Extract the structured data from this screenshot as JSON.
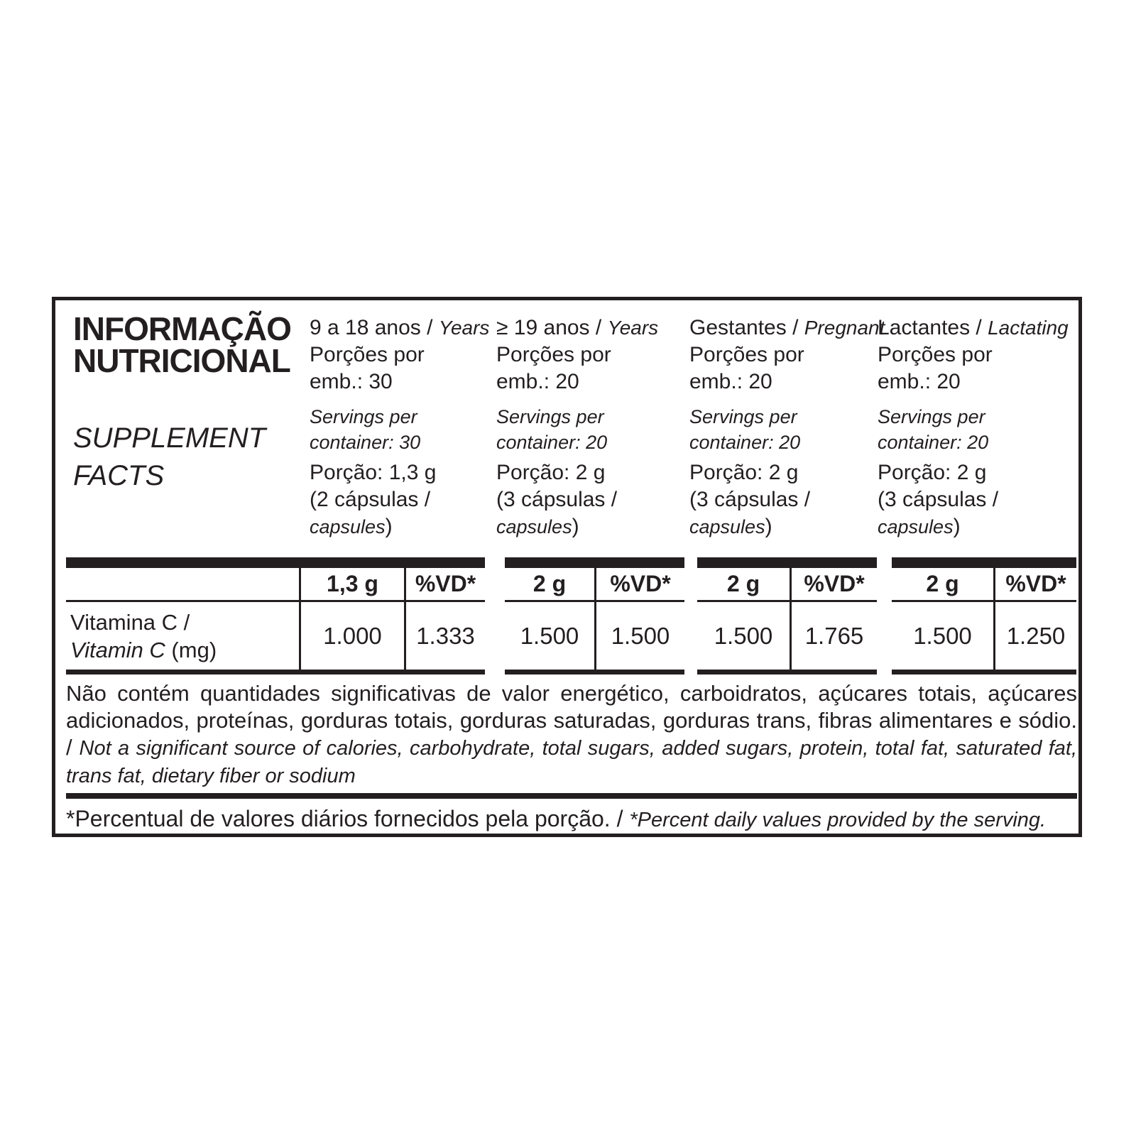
{
  "label": {
    "colors": {
      "ink": "#231f20",
      "background": "#ffffff"
    },
    "title_pt": "INFORMAÇÃO\nNUTRICIONAL",
    "title_en": "SUPPLEMENT\nFACTS",
    "groups": [
      {
        "heading_pt": "9 a 18 anos / ",
        "heading_en": "Years",
        "servings_pt": "Porções por\nemb.: 30",
        "servings_en": "Servings per\ncontainer: 30",
        "portion_pt": "Porção: 1,3 g\n(2 cápsulas /",
        "portion_en": "capsules",
        "portion_close": ")",
        "amount_header": "1,3 g",
        "dv_header": "%VD*",
        "amount_value": "1.000",
        "dv_value": "1.333"
      },
      {
        "heading_pt": "≥ 19 anos / ",
        "heading_en": "Years",
        "servings_pt": "Porções por\nemb.: 20",
        "servings_en": "Servings per\ncontainer: 20",
        "portion_pt": "Porção: 2 g\n(3 cápsulas /",
        "portion_en": "capsules",
        "portion_close": ")",
        "amount_header": "2 g",
        "dv_header": "%VD*",
        "amount_value": "1.500",
        "dv_value": "1.500"
      },
      {
        "heading_pt": "Gestantes / ",
        "heading_en": "Pregnant",
        "servings_pt": "Porções por\nemb.: 20",
        "servings_en": "Servings per\ncontainer: 20",
        "portion_pt": "Porção: 2 g\n(3 cápsulas /",
        "portion_en": "capsules",
        "portion_close": ")",
        "amount_header": "2 g",
        "dv_header": "%VD*",
        "amount_value": "1.500",
        "dv_value": "1.765"
      },
      {
        "heading_pt": "Lactantes / ",
        "heading_en": "Lactating",
        "servings_pt": "Porções por\nemb.: 20",
        "servings_en": "Servings per\ncontainer: 20",
        "portion_pt": "Porção: 2 g\n(3 cápsulas /",
        "portion_en": "capsules",
        "portion_close": ")",
        "amount_header": "2 g",
        "dv_header": "%VD*",
        "amount_value": "1.500",
        "dv_value": "1.250"
      }
    ],
    "nutrient_row": {
      "label_pt": "Vitamina C /",
      "label_en": "Vitamin C",
      "label_unit": " (mg)"
    },
    "footnote_pt": "Não contém quantidades significativas de valor energético, carboidratos, açúcares totais, açúcares adicionados, proteínas, gorduras totais, gorduras saturadas, gorduras trans, fibras alimentares e sódio. / ",
    "footnote_en": "Not a significant source of calories, carbohydrate, total sugars, added sugars, protein, total fat, saturated fat, trans fat, dietary fiber or sodium",
    "daily_value_note_pt": "*Percentual de valores diários fornecidos pela porção. / ",
    "daily_value_note_en": "*Percent daily values provided by the serving."
  }
}
